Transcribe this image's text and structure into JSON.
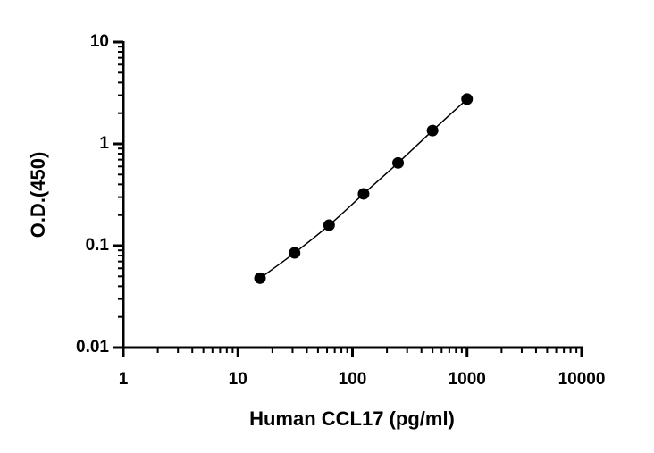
{
  "chart_data": {
    "type": "scatter",
    "x_label": "Human CCL17 (pg/ml)",
    "y_label": "O.D.(450)",
    "series": [
      {
        "color": "#000000",
        "x": [
          15.6,
          31.25,
          62.5,
          125,
          250,
          500,
          1000
        ],
        "values": [
          0.048,
          0.085,
          0.159,
          0.323,
          0.65,
          1.35,
          2.75
        ]
      }
    ],
    "xlim": [
      1,
      10000
    ],
    "xticks": [
      1,
      10,
      100,
      1000,
      10000
    ],
    "ylim": [
      0.01,
      10
    ],
    "yticks": [
      0.01,
      0.1,
      1,
      10
    ],
    "x_log": true,
    "y_log": true,
    "fit_line": true
  }
}
